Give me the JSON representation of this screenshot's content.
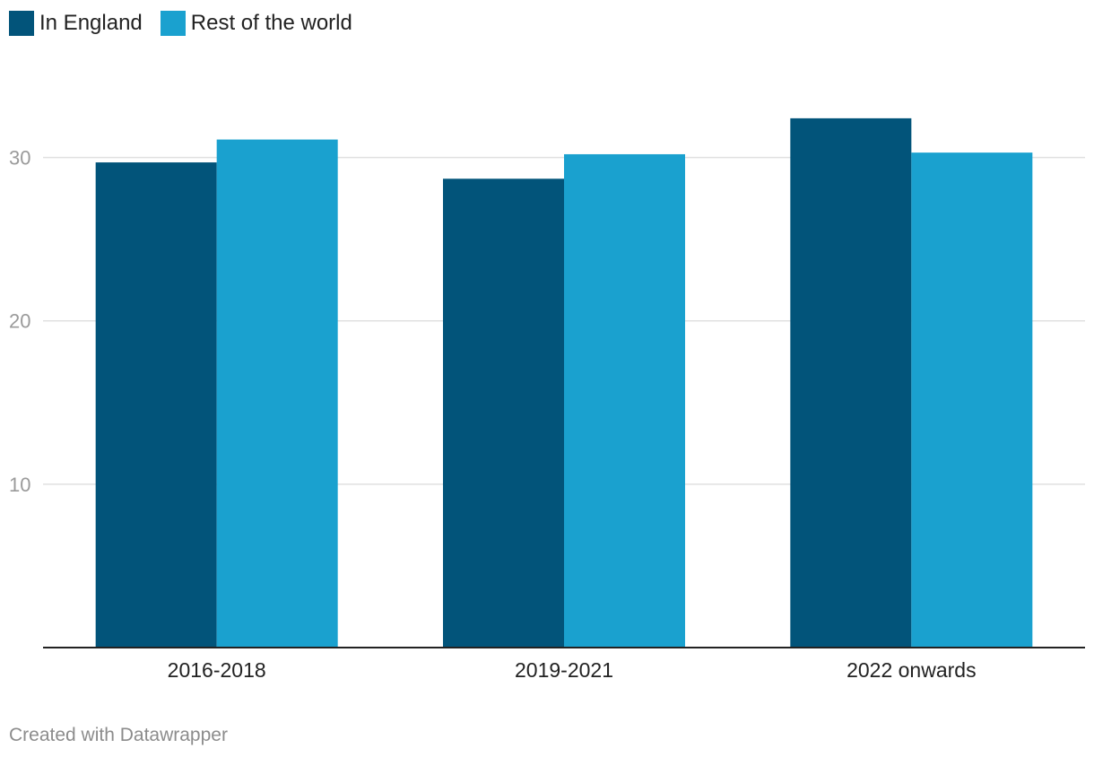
{
  "chart_data": {
    "type": "bar",
    "categories": [
      "2016-2018",
      "2019-2021",
      "2022 onwards"
    ],
    "series": [
      {
        "name": "In England",
        "color": "#02547a",
        "values": [
          29.7,
          28.7,
          32.4
        ]
      },
      {
        "name": "Rest of the world",
        "color": "#1aa1cf",
        "values": [
          31.1,
          30.2,
          30.3
        ]
      }
    ],
    "y_ticks": [
      10,
      20,
      30
    ],
    "ylim": [
      0,
      34.7
    ],
    "grid": true,
    "legend_position": "top-left",
    "title": "",
    "xlabel": "",
    "ylabel": ""
  },
  "footer": {
    "credit": "Created with Datawrapper"
  }
}
